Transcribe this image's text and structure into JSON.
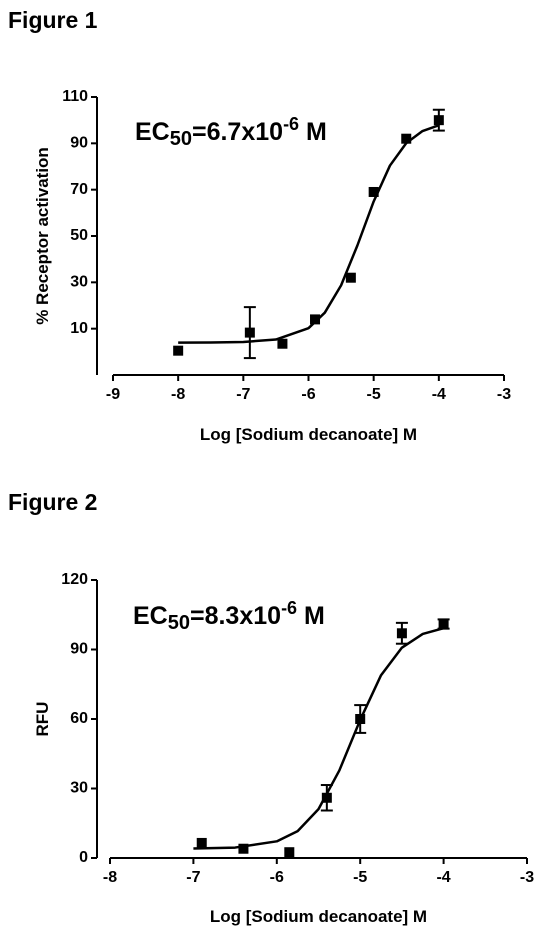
{
  "chart_data": [
    {
      "type": "scatter",
      "title": "Figure 1",
      "annotation": [
        "EC",
        "50",
        "=6.7x10",
        "-6",
        " M"
      ],
      "x_label": "Log [Sodium decanoate] M",
      "y_label": "%  Receptor activation",
      "xlim": [
        -9,
        -3
      ],
      "xticks": [
        -9,
        -8,
        -7,
        -6,
        -5,
        -4,
        -3
      ],
      "ylim": [
        -10,
        110
      ],
      "yticks": [
        10,
        30,
        50,
        70,
        90,
        110
      ],
      "color": "#000000",
      "points": {
        "x": [
          -8,
          -6.9,
          -6.4,
          -5.9,
          -5.35,
          -5.0,
          -4.5,
          -4.0
        ],
        "values": [
          0.5,
          8.3,
          3.5,
          14,
          32,
          69,
          92,
          100
        ],
        "errors": [
          null,
          11,
          null,
          null,
          null,
          null,
          null,
          4.5
        ]
      },
      "fit": {
        "x": [
          -8,
          -7.5,
          -7,
          -6.5,
          -6,
          -5.75,
          -5.5,
          -5.25,
          -5,
          -4.75,
          -4.5,
          -4.25,
          -4
        ],
        "values": [
          4.0,
          4.05,
          4.26,
          5.3,
          10.2,
          16.9,
          28.7,
          45.9,
          64.9,
          80.4,
          90.1,
          95.3,
          97.8
        ]
      }
    },
    {
      "type": "scatter",
      "title": "Figure 2",
      "annotation": [
        "EC",
        "50",
        "=8.3x10",
        "-6",
        " M"
      ],
      "x_label": "Log [Sodium decanoate] M",
      "y_label": "RFU",
      "xlim": [
        -8,
        -3
      ],
      "xticks": [
        -8,
        -7,
        -6,
        -5,
        -4,
        -3
      ],
      "ylim": [
        0,
        120
      ],
      "yticks": [
        0,
        30,
        60,
        90,
        120
      ],
      "color": "#000000",
      "points": {
        "x": [
          -6.9,
          -6.4,
          -5.85,
          -5.4,
          -5.0,
          -4.5,
          -4.0
        ],
        "values": [
          6.5,
          4,
          2.5,
          26,
          60,
          97,
          101
        ],
        "errors": [
          null,
          null,
          null,
          5.5,
          6,
          4.5,
          2
        ]
      },
      "fit": {
        "x": [
          -7,
          -6.5,
          -6,
          -5.75,
          -5.5,
          -5.25,
          -5,
          -4.75,
          -4.5,
          -4.25,
          -4
        ],
        "values": [
          4.08,
          4.5,
          7.2,
          11.6,
          21.1,
          37.8,
          59.6,
          78.9,
          90.8,
          96.7,
          99.2
        ]
      }
    }
  ]
}
